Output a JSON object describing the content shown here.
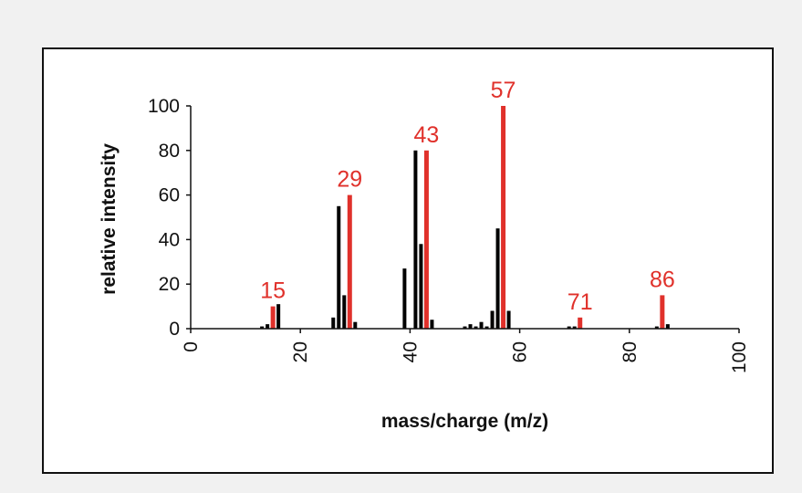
{
  "chart_data": {
    "type": "bar",
    "title": "",
    "xlabel": "mass/charge (m/z)",
    "ylabel": "relative intensity",
    "xlim": [
      0,
      100
    ],
    "ylim": [
      0,
      100
    ],
    "xticks": [
      0,
      20,
      40,
      60,
      80,
      100
    ],
    "yticks": [
      0,
      20,
      40,
      60,
      80,
      100
    ],
    "grid": false,
    "colors": {
      "normal": "#000000",
      "highlight": "#e0312b"
    },
    "peaks": [
      {
        "mz": 13,
        "intensity": 1,
        "highlight": false
      },
      {
        "mz": 14,
        "intensity": 2,
        "highlight": false
      },
      {
        "mz": 15,
        "intensity": 10,
        "highlight": true,
        "label": "15"
      },
      {
        "mz": 16,
        "intensity": 11,
        "highlight": false
      },
      {
        "mz": 26,
        "intensity": 5,
        "highlight": false
      },
      {
        "mz": 27,
        "intensity": 55,
        "highlight": false
      },
      {
        "mz": 28,
        "intensity": 15,
        "highlight": false
      },
      {
        "mz": 29,
        "intensity": 60,
        "highlight": true,
        "label": "29"
      },
      {
        "mz": 30,
        "intensity": 3,
        "highlight": false
      },
      {
        "mz": 39,
        "intensity": 27,
        "highlight": false
      },
      {
        "mz": 41,
        "intensity": 80,
        "highlight": false
      },
      {
        "mz": 42,
        "intensity": 38,
        "highlight": false
      },
      {
        "mz": 43,
        "intensity": 80,
        "highlight": true,
        "label": "43"
      },
      {
        "mz": 44,
        "intensity": 4,
        "highlight": false
      },
      {
        "mz": 50,
        "intensity": 1,
        "highlight": false
      },
      {
        "mz": 51,
        "intensity": 2,
        "highlight": false
      },
      {
        "mz": 52,
        "intensity": 1,
        "highlight": false
      },
      {
        "mz": 53,
        "intensity": 3,
        "highlight": false
      },
      {
        "mz": 54,
        "intensity": 1,
        "highlight": false
      },
      {
        "mz": 55,
        "intensity": 8,
        "highlight": false
      },
      {
        "mz": 56,
        "intensity": 45,
        "highlight": false
      },
      {
        "mz": 57,
        "intensity": 100,
        "highlight": true,
        "label": "57"
      },
      {
        "mz": 58,
        "intensity": 8,
        "highlight": false
      },
      {
        "mz": 69,
        "intensity": 1,
        "highlight": false
      },
      {
        "mz": 70,
        "intensity": 1,
        "highlight": false
      },
      {
        "mz": 71,
        "intensity": 5,
        "highlight": true,
        "label": "71"
      },
      {
        "mz": 85,
        "intensity": 1,
        "highlight": false
      },
      {
        "mz": 86,
        "intensity": 15,
        "highlight": true,
        "label": "86"
      },
      {
        "mz": 87,
        "intensity": 2,
        "highlight": false
      }
    ]
  }
}
